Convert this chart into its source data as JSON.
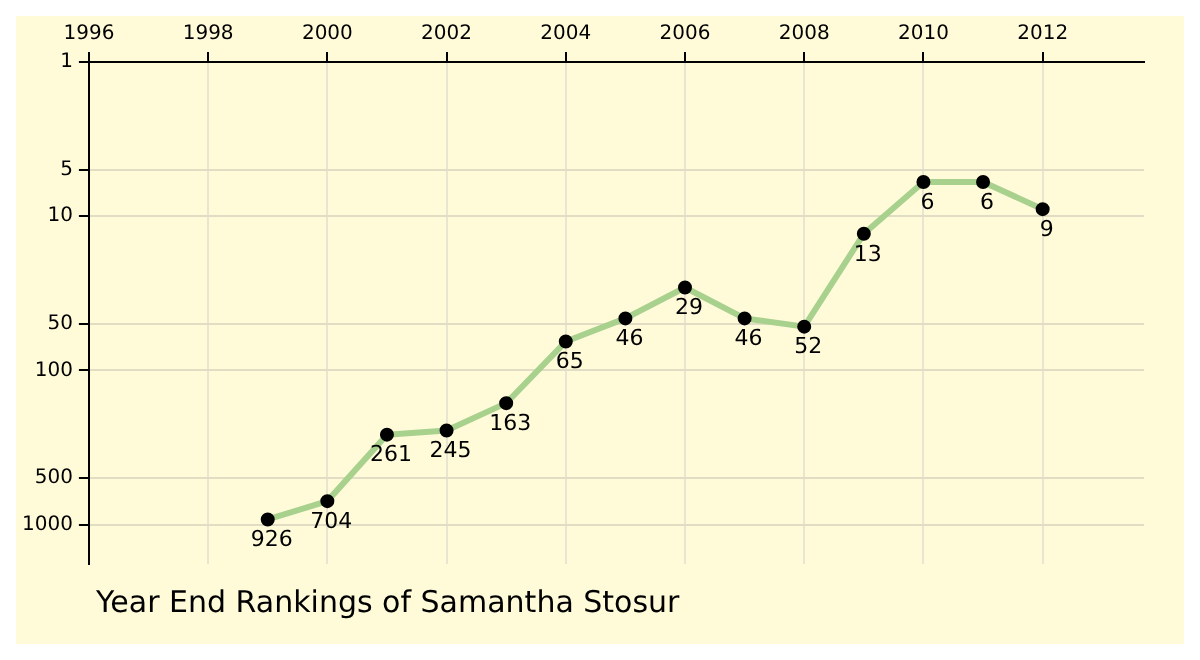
{
  "chart_data": {
    "type": "line",
    "title": "Year End Rankings of Samantha Stosur",
    "x": [
      1999,
      2000,
      2001,
      2002,
      2003,
      2004,
      2005,
      2006,
      2007,
      2008,
      2009,
      2010,
      2011,
      2012
    ],
    "series": [
      {
        "color": "#a9d18e",
        "values": [
          926,
          704,
          261,
          245,
          163,
          65,
          46,
          29,
          46,
          52,
          13,
          6,
          6,
          9
        ]
      }
    ],
    "xlim": [
      1996,
      2013.7
    ],
    "xticks": [
      1996,
      1998,
      2000,
      2002,
      2004,
      2006,
      2008,
      2010,
      2012
    ],
    "ylim": [
      1800,
      1
    ],
    "yticks": [
      1,
      5,
      10,
      50,
      100,
      500,
      1000
    ],
    "log": "y",
    "grid": true,
    "marker": "circle",
    "data_labels": true,
    "legend": false
  }
}
